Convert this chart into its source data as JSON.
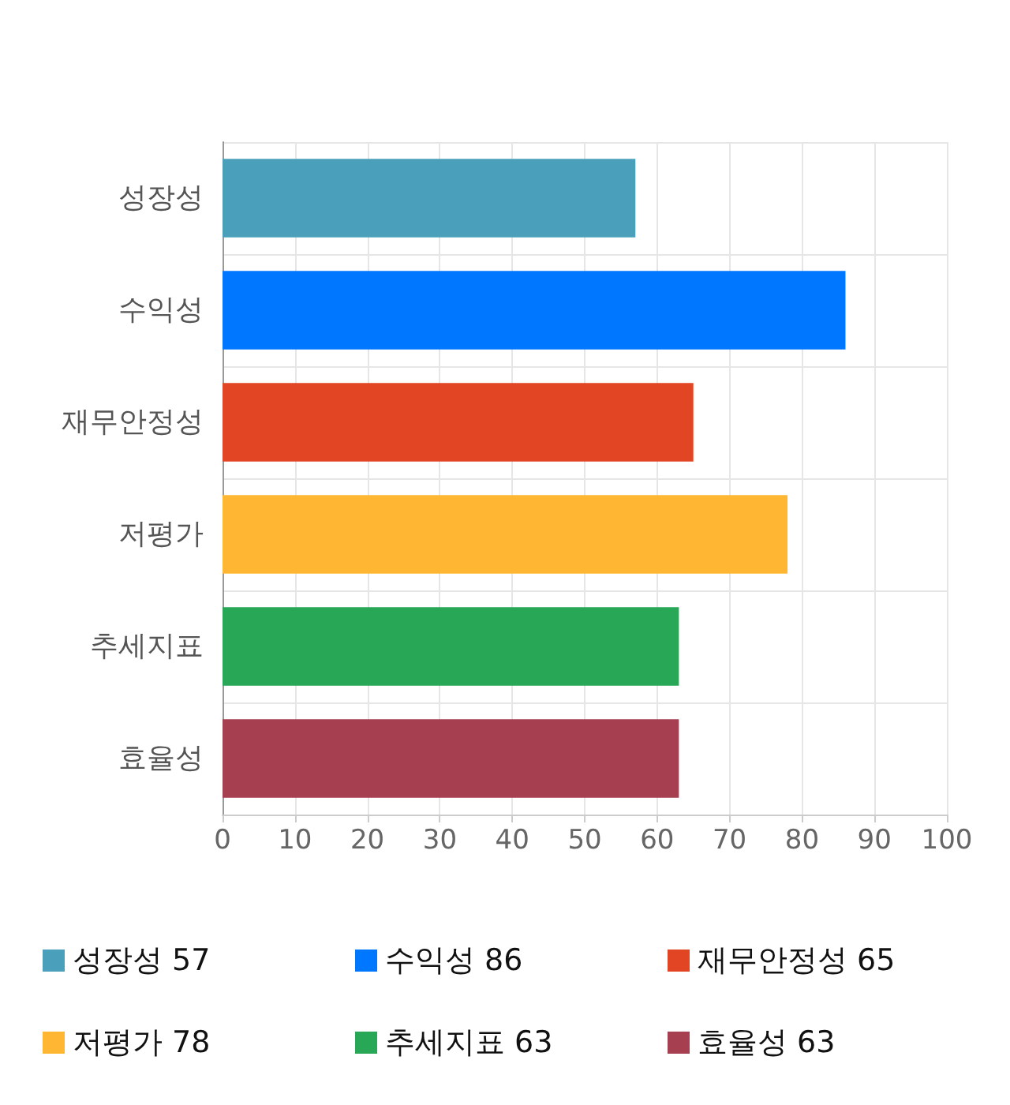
{
  "chart_data": {
    "type": "bar",
    "orientation": "horizontal",
    "stacked": true,
    "categories": [
      "성장성",
      "수익성",
      "재무안정성",
      "저평가",
      "추세지표",
      "효율성"
    ],
    "series": [
      {
        "name": "성장성 57",
        "color": "#4aa0bb",
        "values": [
          57,
          null,
          null,
          null,
          null,
          null
        ]
      },
      {
        "name": "수익성 86",
        "color": "#0077ff",
        "values": [
          null,
          86,
          null,
          null,
          null,
          null
        ]
      },
      {
        "name": "재무안정성 65",
        "color": "#e24523",
        "values": [
          null,
          null,
          65,
          null,
          null,
          null
        ]
      },
      {
        "name": "저평가 78",
        "color": "#ffb733",
        "values": [
          null,
          null,
          null,
          78,
          null,
          null
        ]
      },
      {
        "name": "추세지표 63",
        "color": "#28a757",
        "values": [
          null,
          null,
          null,
          null,
          63,
          null
        ]
      },
      {
        "name": "효율성 63",
        "color": "#a63f4f",
        "values": [
          null,
          null,
          null,
          null,
          null,
          63
        ]
      }
    ],
    "xlim": [
      0,
      100
    ],
    "xticks": [
      0,
      10,
      20,
      30,
      40,
      50,
      60,
      70,
      80,
      90,
      100
    ],
    "grid": true,
    "legend": "bottom"
  }
}
